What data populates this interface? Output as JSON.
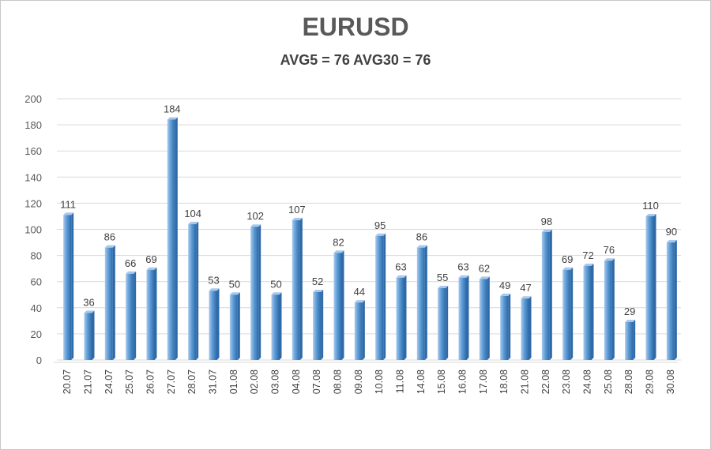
{
  "chart_data": {
    "type": "bar",
    "title": "EURUSD",
    "subtitle": "AVG5 = 76 AVG30 = 76",
    "categories": [
      "20.07",
      "21.07",
      "24.07",
      "25.07",
      "26.07",
      "27.07",
      "28.07",
      "31.07",
      "01.08",
      "02.08",
      "03.08",
      "04.08",
      "07.08",
      "08.08",
      "09.08",
      "10.08",
      "11.08",
      "14.08",
      "15.08",
      "16.08",
      "17.08",
      "18.08",
      "21.08",
      "22.08",
      "23.08",
      "24.08",
      "25.08",
      "28.08",
      "29.08",
      "30.08"
    ],
    "values": [
      111,
      36,
      86,
      66,
      69,
      184,
      104,
      53,
      50,
      102,
      50,
      107,
      52,
      82,
      44,
      95,
      63,
      86,
      55,
      63,
      62,
      49,
      47,
      98,
      69,
      72,
      76,
      29,
      110,
      90
    ],
    "ylim": [
      0,
      200
    ],
    "yticks": [
      0,
      20,
      40,
      60,
      80,
      100,
      120,
      140,
      160,
      180,
      200
    ],
    "xlabel": "",
    "ylabel": "",
    "grid": true,
    "legend": "none",
    "colors": {
      "bar_light": "#a9c8ec",
      "bar_mid": "#5b9bd5",
      "bar_dark": "#2e6aa8",
      "grid": "#d9d9d9"
    }
  }
}
